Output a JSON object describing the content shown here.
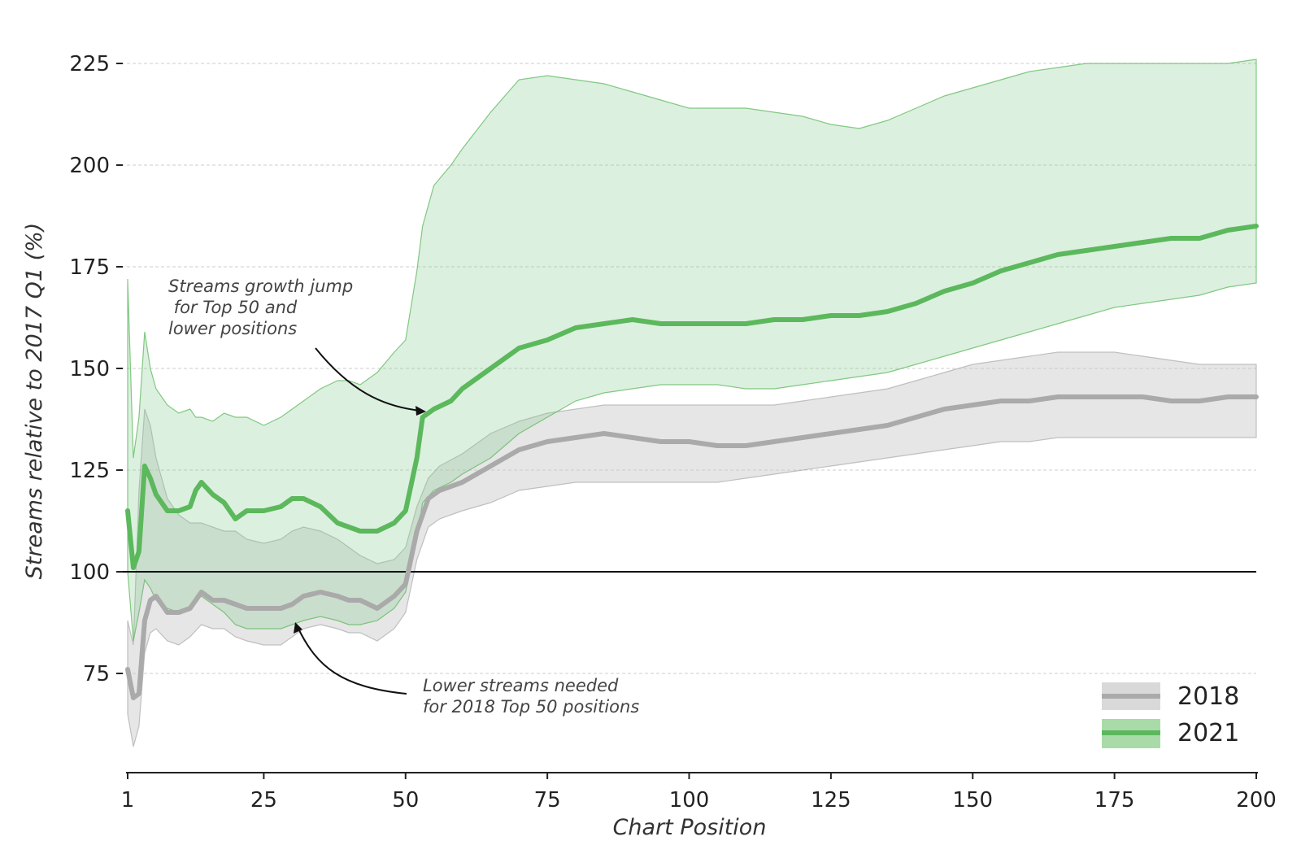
{
  "chart_data": {
    "type": "line",
    "title": "",
    "xlabel": "Chart Position",
    "ylabel": "Streams relative to 2017 Q1 (%)",
    "xlim": [
      1,
      200
    ],
    "ylim": [
      53,
      228
    ],
    "x_ticks": [
      1,
      25,
      50,
      75,
      100,
      125,
      150,
      175,
      200
    ],
    "y_ticks": [
      75,
      100,
      125,
      150,
      175,
      200,
      225
    ],
    "grid": "horizontal dashed",
    "reference_line": 100,
    "legend_position": "bottom-right",
    "colors": {
      "2018": "#aaaaaa",
      "2021": "#5cb85c"
    },
    "series": [
      {
        "name": "2018",
        "x": [
          1,
          2,
          3,
          4,
          5,
          6,
          8,
          10,
          12,
          14,
          16,
          18,
          20,
          22,
          25,
          28,
          30,
          32,
          35,
          38,
          40,
          42,
          45,
          48,
          50,
          52,
          54,
          56,
          60,
          65,
          70,
          75,
          80,
          85,
          90,
          95,
          100,
          105,
          110,
          115,
          120,
          125,
          130,
          135,
          140,
          145,
          150,
          155,
          160,
          165,
          170,
          175,
          180,
          185,
          190,
          195,
          200
        ],
        "values": [
          76,
          69,
          70,
          88,
          93,
          94,
          90,
          90,
          91,
          95,
          93,
          93,
          92,
          91,
          91,
          91,
          92,
          94,
          95,
          94,
          93,
          93,
          91,
          94,
          97,
          110,
          118,
          120,
          122,
          126,
          130,
          132,
          133,
          134,
          133,
          132,
          132,
          131,
          131,
          132,
          133,
          134,
          135,
          136,
          138,
          140,
          141,
          142,
          142,
          143,
          143,
          143,
          143,
          142,
          142,
          143,
          143
        ],
        "lower": [
          65,
          57,
          62,
          80,
          85,
          86,
          83,
          82,
          84,
          87,
          86,
          86,
          84,
          83,
          82,
          82,
          84,
          86,
          87,
          86,
          85,
          85,
          83,
          86,
          90,
          103,
          111,
          113,
          115,
          117,
          120,
          121,
          122,
          122,
          122,
          122,
          122,
          122,
          123,
          124,
          125,
          126,
          127,
          128,
          129,
          130,
          131,
          132,
          132,
          133,
          133,
          133,
          133,
          133,
          133,
          133,
          133
        ],
        "upper": [
          88,
          82,
          120,
          140,
          136,
          128,
          118,
          114,
          112,
          112,
          111,
          110,
          110,
          108,
          107,
          108,
          110,
          111,
          110,
          108,
          106,
          104,
          102,
          103,
          106,
          116,
          123,
          126,
          129,
          134,
          137,
          139,
          140,
          141,
          141,
          141,
          141,
          141,
          141,
          141,
          142,
          143,
          144,
          145,
          147,
          149,
          151,
          152,
          153,
          154,
          154,
          154,
          153,
          152,
          151,
          151,
          151
        ]
      },
      {
        "name": "2021",
        "x": [
          1,
          2,
          3,
          4,
          5,
          6,
          8,
          10,
          12,
          13,
          14,
          16,
          18,
          20,
          22,
          25,
          28,
          30,
          32,
          35,
          38,
          40,
          42,
          45,
          48,
          50,
          52,
          53,
          55,
          58,
          60,
          65,
          70,
          75,
          80,
          85,
          90,
          95,
          100,
          105,
          110,
          115,
          120,
          125,
          130,
          135,
          140,
          145,
          150,
          155,
          160,
          165,
          170,
          175,
          180,
          185,
          190,
          195,
          200
        ],
        "values": [
          115,
          101,
          105,
          126,
          123,
          119,
          115,
          115,
          116,
          120,
          122,
          119,
          117,
          113,
          115,
          115,
          116,
          118,
          118,
          116,
          112,
          111,
          110,
          110,
          112,
          115,
          128,
          138,
          140,
          142,
          145,
          150,
          155,
          157,
          160,
          161,
          162,
          161,
          161,
          161,
          161,
          162,
          162,
          163,
          163,
          164,
          166,
          169,
          171,
          174,
          176,
          178,
          179,
          180,
          181,
          182,
          182,
          184,
          185
        ],
        "lower": [
          100,
          83,
          90,
          98,
          96,
          93,
          91,
          90,
          91,
          93,
          94,
          92,
          90,
          87,
          86,
          86,
          86,
          87,
          88,
          89,
          88,
          87,
          87,
          88,
          91,
          95,
          108,
          117,
          120,
          122,
          124,
          128,
          134,
          138,
          142,
          144,
          145,
          146,
          146,
          146,
          145,
          145,
          146,
          147,
          148,
          149,
          151,
          153,
          155,
          157,
          159,
          161,
          163,
          165,
          166,
          167,
          168,
          170,
          171
        ],
        "upper": [
          172,
          128,
          138,
          159,
          150,
          145,
          141,
          139,
          140,
          138,
          138,
          137,
          139,
          138,
          138,
          136,
          138,
          140,
          142,
          145,
          147,
          147,
          146,
          149,
          154,
          157,
          174,
          185,
          195,
          200,
          204,
          213,
          221,
          222,
          221,
          220,
          218,
          216,
          214,
          214,
          214,
          213,
          212,
          210,
          209,
          211,
          214,
          217,
          219,
          221,
          223,
          224,
          225,
          225,
          225,
          225,
          225,
          225,
          226
        ]
      }
    ],
    "annotations": [
      {
        "lines": [
          "Streams growth jump",
          " for Top 50 and",
          "lower positions"
        ]
      },
      {
        "lines": [
          "Lower streams needed",
          "for 2018 Top 50 positions"
        ]
      }
    ],
    "legend": [
      "2018",
      "2021"
    ]
  }
}
